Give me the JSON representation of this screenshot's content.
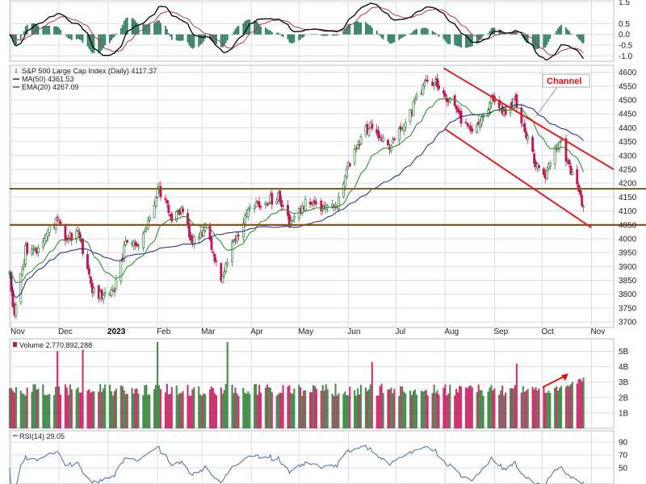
{
  "chart_data": {
    "type": "candlestick",
    "title": "S&P 500 Large Cap Index (Daily) 4117.37",
    "colors": {
      "up": "#2e7d32",
      "down": "#c2185b",
      "ma50": "#1a237e",
      "ema20": "#1b8a1b",
      "resistance": "#e02020",
      "support": "#1aa01a",
      "channel": "#e02020",
      "rsi_line": "#4a6aa0",
      "macd_line": "#000000",
      "macd_signal": "#b03060",
      "macd_hist": "#2e7d5e",
      "grid": "#d8dde8",
      "panel_border": "#b8bcc8"
    },
    "x_axis": {
      "months": [
        {
          "label": "Nov",
          "bold": false
        },
        {
          "label": "Dec",
          "bold": false
        },
        {
          "label": "2023",
          "bold": true
        },
        {
          "label": "Feb",
          "bold": false
        },
        {
          "label": "Mar",
          "bold": false
        },
        {
          "label": "Apr",
          "bold": false
        },
        {
          "label": "May",
          "bold": false
        },
        {
          "label": "Jun",
          "bold": false
        },
        {
          "label": "Jul",
          "bold": false
        },
        {
          "label": "Aug",
          "bold": false
        },
        {
          "label": "Sep",
          "bold": false
        },
        {
          "label": "Oct",
          "bold": false
        },
        {
          "label": "Nov",
          "bold": false
        }
      ],
      "start": "2022-10-31",
      "end": "2023-11-15"
    },
    "macd_panel": {
      "y_ticks": [
        "1.5",
        "0.5",
        "0.0",
        "-0.5",
        "-1.0"
      ],
      "ylim": [
        -1.25,
        1.6
      ]
    },
    "price_panel": {
      "legend": [
        {
          "text": "S&P 500 Large Cap Index (Daily) 4117.37",
          "marker": "candle"
        },
        {
          "text": "MA(50) 4361.53",
          "marker": "ma50"
        },
        {
          "text": "EMA(20) 4267.09",
          "marker": "ema20"
        }
      ],
      "y_ticks": [
        4600,
        4550,
        4500,
        4450,
        4400,
        4350,
        4300,
        4250,
        4200,
        4150,
        4100,
        4050,
        4000,
        3950,
        3900,
        3850,
        3800,
        3750,
        3700
      ],
      "ylim": [
        3680,
        4625
      ],
      "resistance_level": 4180,
      "support_level": 4050,
      "channel_annotation": "Channel",
      "channel_upper": [
        [
          "2023-07-31",
          4615
        ],
        [
          "2023-11-15",
          4250
        ]
      ],
      "channel_lower": [
        [
          "2023-08-01",
          4395
        ],
        [
          "2023-11-01",
          4040
        ]
      ],
      "anchors": [
        [
          "2022-10-31",
          3870
        ],
        [
          "2022-11-03",
          3720
        ],
        [
          "2022-11-10",
          3960
        ],
        [
          "2022-11-17",
          3950
        ],
        [
          "2022-11-30",
          4080
        ],
        [
          "2022-12-05",
          4000
        ],
        [
          "2022-12-13",
          4020
        ],
        [
          "2022-12-22",
          3820
        ],
        [
          "2022-12-28",
          3790
        ],
        [
          "2023-01-05",
          3810
        ],
        [
          "2023-01-12",
          3990
        ],
        [
          "2023-01-20",
          3970
        ],
        [
          "2023-02-02",
          4180
        ],
        [
          "2023-02-10",
          4080
        ],
        [
          "2023-02-16",
          4100
        ],
        [
          "2023-02-23",
          3990
        ],
        [
          "2023-03-03",
          4040
        ],
        [
          "2023-03-13",
          3850
        ],
        [
          "2023-03-21",
          3990
        ],
        [
          "2023-03-31",
          4110
        ],
        [
          "2023-04-18",
          4150
        ],
        [
          "2023-04-26",
          4050
        ],
        [
          "2023-05-05",
          4130
        ],
        [
          "2023-05-16",
          4110
        ],
        [
          "2023-05-24",
          4110
        ],
        [
          "2023-06-02",
          4280
        ],
        [
          "2023-06-15",
          4420
        ],
        [
          "2023-06-26",
          4330
        ],
        [
          "2023-07-06",
          4410
        ],
        [
          "2023-07-19",
          4560
        ],
        [
          "2023-07-27",
          4560
        ],
        [
          "2023-08-03",
          4500
        ],
        [
          "2023-08-18",
          4370
        ],
        [
          "2023-08-31",
          4510
        ],
        [
          "2023-09-07",
          4450
        ],
        [
          "2023-09-14",
          4500
        ],
        [
          "2023-09-27",
          4270
        ],
        [
          "2023-10-03",
          4230
        ],
        [
          "2023-10-12",
          4360
        ],
        [
          "2023-10-20",
          4230
        ],
        [
          "2023-10-27",
          4117
        ]
      ]
    },
    "volume_panel": {
      "label": "Volume 2,770,892,288",
      "y_ticks": [
        "5B",
        "4B",
        "3B",
        "2B",
        "1B"
      ],
      "ylim": [
        0,
        5.6
      ],
      "spikes": [
        [
          "2022-11-30",
          5.0
        ],
        [
          "2022-12-16",
          5.1
        ],
        [
          "2023-02-01",
          5.6
        ],
        [
          "2023-03-17",
          5.6
        ],
        [
          "2023-06-16",
          4.3
        ],
        [
          "2023-09-15",
          4.2
        ]
      ]
    },
    "rsi_panel": {
      "label": "RSI(14) 29.05",
      "y_ticks": [
        "90",
        "70",
        "50"
      ],
      "ylim": [
        25,
        100
      ]
    }
  }
}
